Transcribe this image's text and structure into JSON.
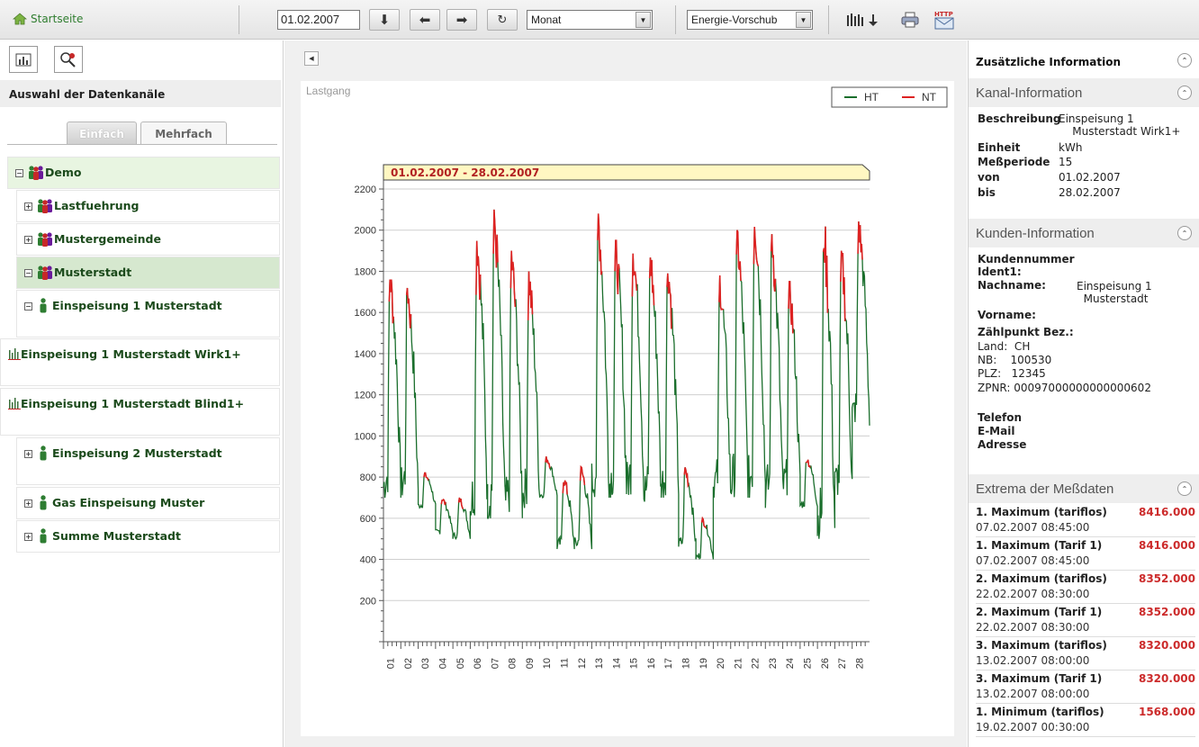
{
  "toolbar": {
    "home_label": "Startseite",
    "date_value": "01.02.2007",
    "period_select": "Monat",
    "mode_select": "Energie-Vorschub"
  },
  "left": {
    "header": "Auswahl der Datenkanäle",
    "tabs": [
      "Einfach",
      "Mehrfach"
    ],
    "tree": [
      {
        "label": "Demo",
        "sign": "−"
      },
      {
        "label": "Lastfuehrung",
        "sign": "+"
      },
      {
        "label": "Mustergemeinde",
        "sign": "+"
      },
      {
        "label": "Musterstadt",
        "sign": "−"
      },
      {
        "label": "Einspeisung 1 Musterstadt",
        "sign": "−"
      },
      {
        "label": "Einspeisung 1 Musterstadt Wirk1+"
      },
      {
        "label": "Einspeisung 1 Musterstadt Blind1+"
      },
      {
        "label": "Einspeisung 2 Musterstadt",
        "sign": "+"
      },
      {
        "label": "Gas Einspeisung Muster",
        "sign": "+"
      },
      {
        "label": "Summe Musterstadt",
        "sign": "+"
      }
    ]
  },
  "chart": {
    "title": "Lastgang",
    "range_label": "01.02.2007 - 28.02.2007",
    "legend": [
      {
        "name": "HT",
        "color": "#1a6e2c"
      },
      {
        "name": "NT",
        "color": "#dd2222"
      }
    ]
  },
  "chart_data": {
    "type": "line",
    "title": "Lastgang",
    "ylim": [
      0,
      2200
    ],
    "y_ticks": [
      200,
      400,
      600,
      800,
      1000,
      1200,
      1400,
      1600,
      1800,
      2000,
      2200
    ],
    "x_tick_labels": [
      "01",
      "02",
      "03",
      "04",
      "05",
      "06",
      "07",
      "08",
      "09",
      "10",
      "11",
      "12",
      "13",
      "14",
      "15",
      "16",
      "17",
      "18",
      "19",
      "20",
      "21",
      "22",
      "23",
      "24",
      "25",
      "26",
      "27",
      "28"
    ],
    "series": [
      {
        "name": "HT",
        "color": "#1a6e2c"
      },
      {
        "name": "NT",
        "color": "#dd2222"
      }
    ],
    "day_profile": [
      {
        "day": 1,
        "min": 700,
        "max": 1800
      },
      {
        "day": 2,
        "min": 700,
        "max": 1750
      },
      {
        "day": 3,
        "min": 650,
        "max": 820
      },
      {
        "day": 4,
        "min": 520,
        "max": 700
      },
      {
        "day": 5,
        "min": 500,
        "max": 700
      },
      {
        "day": 6,
        "min": 600,
        "max": 2000
      },
      {
        "day": 7,
        "min": 600,
        "max": 2100
      },
      {
        "day": 8,
        "min": 600,
        "max": 1900
      },
      {
        "day": 9,
        "min": 650,
        "max": 1800
      },
      {
        "day": 10,
        "min": 700,
        "max": 900
      },
      {
        "day": 11,
        "min": 450,
        "max": 800
      },
      {
        "day": 12,
        "min": 450,
        "max": 850
      },
      {
        "day": 13,
        "min": 700,
        "max": 2080
      },
      {
        "day": 14,
        "min": 700,
        "max": 1950
      },
      {
        "day": 15,
        "min": 700,
        "max": 1950
      },
      {
        "day": 16,
        "min": 650,
        "max": 1900
      },
      {
        "day": 17,
        "min": 700,
        "max": 1850
      },
      {
        "day": 18,
        "min": 450,
        "max": 850
      },
      {
        "day": 19,
        "min": 400,
        "max": 600
      },
      {
        "day": 20,
        "min": 700,
        "max": 1780
      },
      {
        "day": 21,
        "min": 700,
        "max": 2000
      },
      {
        "day": 22,
        "min": 700,
        "max": 2110
      },
      {
        "day": 23,
        "min": 650,
        "max": 2000
      },
      {
        "day": 24,
        "min": 700,
        "max": 1750
      },
      {
        "day": 25,
        "min": 650,
        "max": 900
      },
      {
        "day": 26,
        "min": 500,
        "max": 2020
      },
      {
        "day": 27,
        "min": 700,
        "max": 1900
      },
      {
        "day": 28,
        "min": 1050,
        "max": 2050
      }
    ]
  },
  "right": {
    "title": "Zusätzliche Information",
    "kanal": {
      "title": "Kanal-Information",
      "rows": [
        {
          "k": "Beschreibung",
          "v": "Einspeisung 1\n    Musterstadt Wirk1+"
        },
        {
          "k": "Einheit",
          "v": "kWh"
        },
        {
          "k": "Meßperiode",
          "v": "15"
        },
        {
          "k": "von",
          "v": "01.02.2007"
        },
        {
          "k": "bis",
          "v": "28.02.2007"
        }
      ]
    },
    "kunden": {
      "title": "Kunden-Information",
      "kundennummer": "Kundennummer",
      "ident": "Ident1:",
      "nachname_k": "Nachname:",
      "nachname_v": "Einspeisung 1\n  Musterstadt",
      "vorname": "Vorname:",
      "zaehlpunkt": "Zählpunkt Bez.:",
      "land": "Land:  CH",
      "nb": "NB:    100530",
      "plz": "PLZ:   12345",
      "zpnr": "ZPNR: 00097000000000000602",
      "telefon": "Telefon",
      "email": "E-Mail",
      "adresse": "Adresse"
    },
    "extrema": {
      "title": "Extrema der Meßdaten",
      "rows": [
        {
          "name": "1. Maximum (tariflos)",
          "value": "8416.000",
          "time": "07.02.2007 08:45:00"
        },
        {
          "name": "1. Maximum (Tarif 1)",
          "value": "8416.000",
          "time": "07.02.2007 08:45:00"
        },
        {
          "name": "2. Maximum (tariflos)",
          "value": "8352.000",
          "time": "22.02.2007 08:30:00"
        },
        {
          "name": "2. Maximum (Tarif 1)",
          "value": "8352.000",
          "time": "22.02.2007 08:30:00"
        },
        {
          "name": "3. Maximum (tariflos)",
          "value": "8320.000",
          "time": "13.02.2007 08:00:00"
        },
        {
          "name": "3. Maximum (Tarif 1)",
          "value": "8320.000",
          "time": "13.02.2007 08:00:00"
        },
        {
          "name": "1. Minimum (tariflos)",
          "value": "1568.000",
          "time": "19.02.2007 00:30:00"
        }
      ]
    }
  }
}
